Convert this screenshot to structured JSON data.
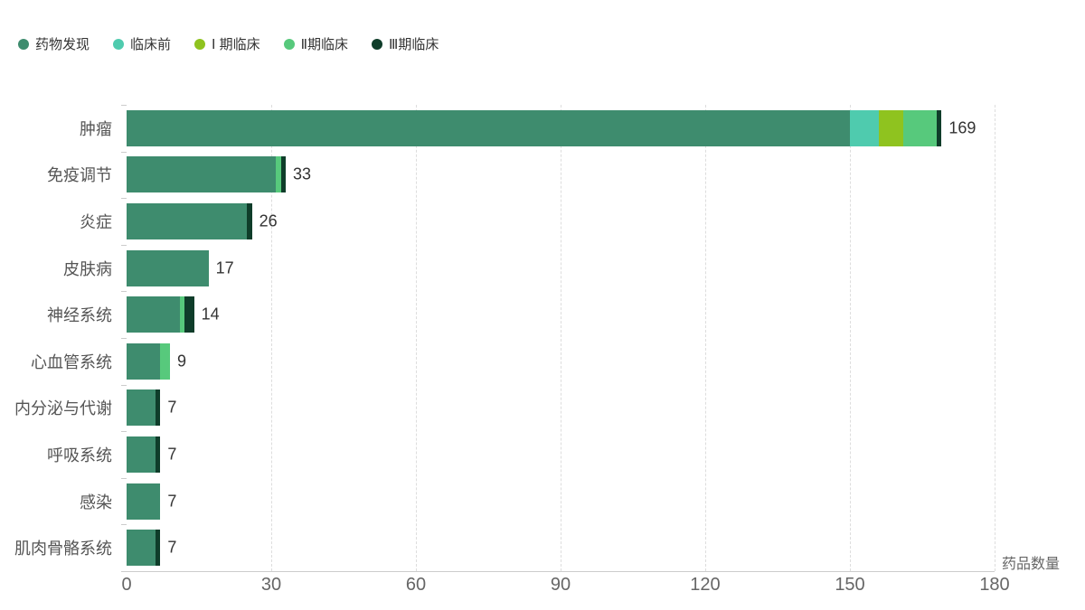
{
  "chart_data": {
    "type": "bar",
    "orientation": "horizontal",
    "stacked": true,
    "title": "",
    "xlabel": "药品数量",
    "ylabel": "",
    "xlim": [
      0,
      180
    ],
    "xticks": [
      0,
      30,
      60,
      90,
      120,
      150,
      180
    ],
    "grid": "dashed-vertical",
    "legend_position": "top-left",
    "categories": [
      "肿瘤",
      "免疫调节",
      "炎症",
      "皮肤病",
      "神经系统",
      "心血管系统",
      "内分泌与代谢",
      "呼吸系统",
      "感染",
      "肌肉骨骼系统"
    ],
    "series": [
      {
        "name": "药物发现",
        "color": "#3E8C6E",
        "values": [
          150,
          31,
          25,
          17,
          11,
          7,
          6,
          6,
          7,
          6
        ]
      },
      {
        "name": "临床前",
        "color": "#4FCBAE",
        "values": [
          6,
          0,
          0,
          0,
          0,
          0,
          0,
          0,
          0,
          0
        ]
      },
      {
        "name": "Ⅰ 期临床",
        "color": "#8FC31F",
        "values": [
          5,
          0,
          0,
          0,
          0,
          0,
          0,
          0,
          0,
          0
        ]
      },
      {
        "name": "Ⅱ期临床",
        "color": "#57C97C",
        "values": [
          7,
          1,
          0,
          0,
          1,
          2,
          0,
          0,
          0,
          0
        ]
      },
      {
        "name": "Ⅲ期临床",
        "color": "#0F3D2A",
        "values": [
          1,
          1,
          1,
          0,
          2,
          0,
          1,
          1,
          0,
          1
        ]
      }
    ],
    "totals": [
      169,
      33,
      26,
      17,
      14,
      9,
      7,
      7,
      7,
      7
    ]
  },
  "colors": {
    "background": "#ffffff",
    "axis_line": "#cccccc",
    "gridline": "#dddddd",
    "tick_text": "#666666",
    "category_text": "#555555",
    "value_text": "#333333",
    "legend_text": "#333333"
  }
}
